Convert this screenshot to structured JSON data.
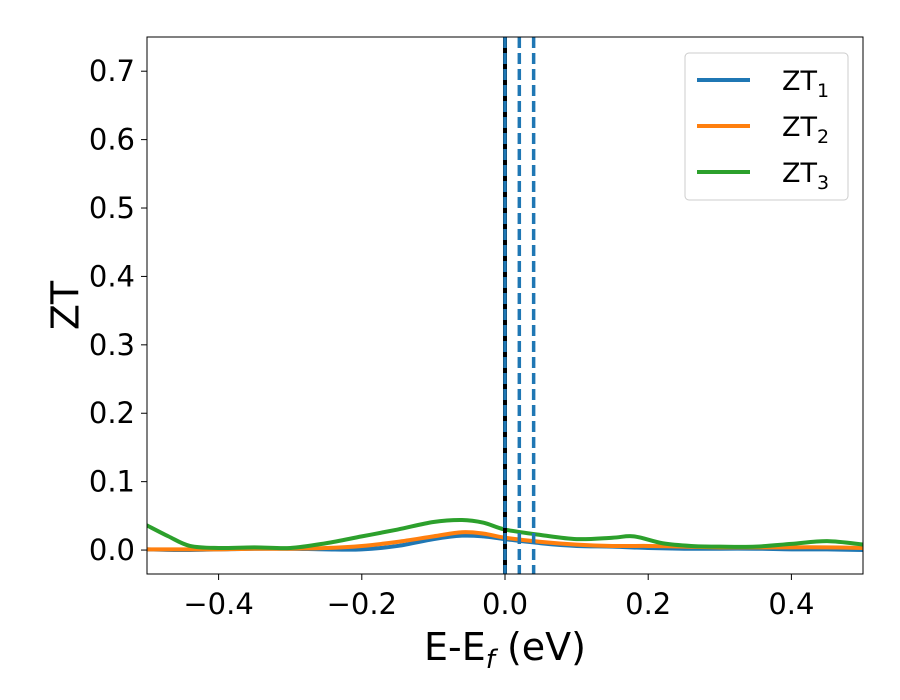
{
  "chart_data": {
    "type": "line",
    "xlabel": "E-E",
    "xlabel_sub": "f",
    "xlabel_unit": " (eV)",
    "ylabel": "ZT",
    "xlim": [
      -0.5,
      0.5
    ],
    "ylim": [
      -0.035,
      0.75
    ],
    "x_ticks": [
      -0.4,
      -0.2,
      0.0,
      0.2,
      0.4
    ],
    "x_tick_labels": [
      "−0.4",
      "−0.2",
      "0.0",
      "0.2",
      "0.4"
    ],
    "y_ticks": [
      0.0,
      0.1,
      0.2,
      0.3,
      0.4,
      0.5,
      0.6,
      0.7
    ],
    "y_tick_labels": [
      "0.0",
      "0.1",
      "0.2",
      "0.3",
      "0.4",
      "0.5",
      "0.6",
      "0.7"
    ],
    "grid": false,
    "legend_position": "top-right",
    "series": [
      {
        "name": "ZT",
        "name_sub": "1",
        "color": "#1f77b4",
        "x": [
          -0.5,
          -0.45,
          -0.4,
          -0.35,
          -0.3,
          -0.25,
          -0.2,
          -0.15,
          -0.1,
          -0.06,
          -0.03,
          0.0,
          0.05,
          0.1,
          0.15,
          0.2,
          0.25,
          0.3,
          0.35,
          0.4,
          0.45,
          0.5
        ],
        "y": [
          0.001,
          0.0,
          0.001,
          0.002,
          0.002,
          0.001,
          0.001,
          0.006,
          0.016,
          0.021,
          0.02,
          0.016,
          0.01,
          0.006,
          0.005,
          0.003,
          0.002,
          0.002,
          0.002,
          0.001,
          0.001,
          0.0
        ]
      },
      {
        "name": "ZT",
        "name_sub": "2",
        "color": "#ff7f0e",
        "x": [
          -0.5,
          -0.45,
          -0.4,
          -0.35,
          -0.3,
          -0.25,
          -0.2,
          -0.15,
          -0.1,
          -0.06,
          -0.03,
          0.0,
          0.05,
          0.1,
          0.15,
          0.2,
          0.25,
          0.3,
          0.35,
          0.4,
          0.45,
          0.5
        ],
        "y": [
          0.001,
          0.001,
          0.001,
          0.002,
          0.002,
          0.003,
          0.006,
          0.012,
          0.02,
          0.026,
          0.024,
          0.018,
          0.012,
          0.008,
          0.006,
          0.006,
          0.005,
          0.004,
          0.004,
          0.004,
          0.004,
          0.003
        ]
      },
      {
        "name": "ZT",
        "name_sub": "3",
        "color": "#2ca02c",
        "x": [
          -0.5,
          -0.47,
          -0.44,
          -0.4,
          -0.35,
          -0.3,
          -0.25,
          -0.2,
          -0.15,
          -0.1,
          -0.06,
          -0.03,
          0.0,
          0.05,
          0.1,
          0.15,
          0.18,
          0.22,
          0.26,
          0.3,
          0.35,
          0.4,
          0.45,
          0.5
        ],
        "y": [
          0.036,
          0.02,
          0.006,
          0.003,
          0.004,
          0.003,
          0.01,
          0.02,
          0.03,
          0.041,
          0.044,
          0.04,
          0.03,
          0.022,
          0.016,
          0.018,
          0.02,
          0.01,
          0.006,
          0.005,
          0.005,
          0.009,
          0.013,
          0.008
        ]
      }
    ],
    "reference_lines": [
      {
        "x": 0.0,
        "style": "solid",
        "color": "#000000"
      },
      {
        "x": 0.0,
        "style": "dashed",
        "color": "#1f77b4"
      },
      {
        "x": 0.02,
        "style": "dashed",
        "color": "#1f77b4"
      },
      {
        "x": 0.04,
        "style": "dashed",
        "color": "#1f77b4"
      }
    ]
  }
}
